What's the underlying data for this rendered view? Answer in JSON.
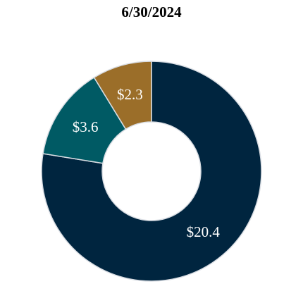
{
  "chart_data": {
    "type": "pie",
    "variant": "donut",
    "title": "6/30/2024",
    "categories": [
      "",
      "",
      ""
    ],
    "values": [
      20.4,
      3.6,
      2.3
    ],
    "labels": [
      "$20.4",
      "$3.6",
      "$2.3"
    ],
    "colors": [
      "#00253f",
      "#005a64",
      "#9b6e29"
    ],
    "label_color": "#ffffff",
    "slice_border_color": "#d9dde3",
    "start": "12 o'clock",
    "direction": "clockwise",
    "legend": "none"
  }
}
